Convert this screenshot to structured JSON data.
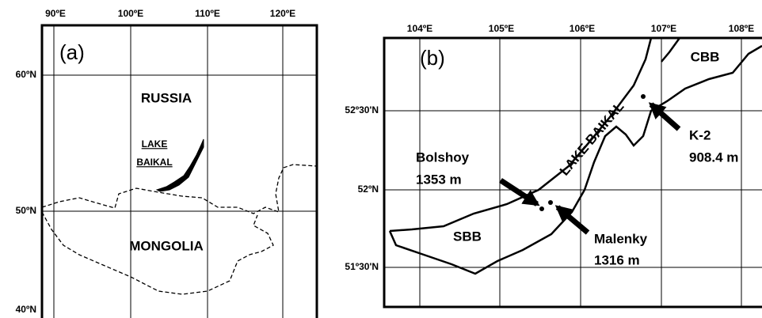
{
  "panel_a": {
    "label": "(a)",
    "lon_ticks": [
      "90ºE",
      "100ºE",
      "110ºE",
      "120ºE"
    ],
    "lat_ticks": [
      "60ºN",
      "50ºN",
      "40ºN"
    ],
    "places": [
      "RUSSIA",
      "LAKE",
      "BAIKAL",
      "MONGOLIA"
    ]
  },
  "panel_b": {
    "label": "(b)",
    "lon_ticks": [
      "104ºE",
      "105ºE",
      "106ºE",
      "107ºE",
      "108ºE"
    ],
    "lat_ticks": [
      "52º30'N",
      "52ºN",
      "51º30'N"
    ],
    "basins": [
      "CBB",
      "SBB"
    ],
    "lake_name": "LAKE BAIKAL",
    "sites": [
      {
        "name": "Bolshoy",
        "depth": "1353 m"
      },
      {
        "name": "Malenky",
        "depth": "1316 m"
      },
      {
        "name": "K-2",
        "depth": "908.4 m"
      }
    ]
  }
}
